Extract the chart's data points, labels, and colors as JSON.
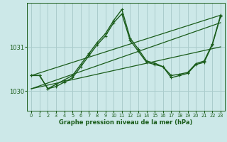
{
  "xlabel": "Graphe pression niveau de la mer (hPa)",
  "bg_color": "#cce8e8",
  "grid_color": "#aacccc",
  "line_color": "#1a5c1a",
  "xlim": [
    -0.5,
    23.5
  ],
  "ylim": [
    1029.55,
    1032.0
  ],
  "yticks": [
    1030,
    1031
  ],
  "xticks": [
    0,
    1,
    2,
    3,
    4,
    5,
    6,
    7,
    8,
    9,
    10,
    11,
    12,
    13,
    14,
    15,
    16,
    17,
    18,
    19,
    20,
    21,
    22,
    23
  ],
  "series": [
    {
      "x": [
        0,
        1,
        2,
        3,
        4,
        5,
        6,
        7,
        8,
        9,
        10,
        11,
        12,
        13,
        14,
        15,
        16,
        17,
        18,
        19,
        20,
        21,
        22,
        23
      ],
      "y": [
        1030.35,
        1030.35,
        1030.05,
        1030.1,
        1030.2,
        1030.3,
        1030.55,
        1030.8,
        1031.05,
        1031.25,
        1031.55,
        1031.75,
        1031.15,
        1030.9,
        1030.65,
        1030.6,
        1030.55,
        1030.3,
        1030.35,
        1030.4,
        1030.6,
        1030.65,
        1031.05,
        1031.7
      ],
      "marker": true,
      "linewidth": 1.0
    },
    {
      "x": [
        0,
        1,
        2,
        3,
        4,
        5,
        6,
        7,
        8,
        9,
        10,
        11,
        12,
        13,
        14,
        15,
        16,
        17,
        18,
        19,
        20,
        21,
        22,
        23
      ],
      "y": [
        1030.35,
        1030.35,
        1030.05,
        1030.15,
        1030.25,
        1030.35,
        1030.6,
        1030.85,
        1031.1,
        1031.3,
        1031.6,
        1031.85,
        1031.2,
        1030.95,
        1030.68,
        1030.63,
        1030.55,
        1030.35,
        1030.38,
        1030.42,
        1030.62,
        1030.68,
        1031.07,
        1031.72
      ],
      "marker": true,
      "linewidth": 1.0
    },
    {
      "x": [
        0,
        23
      ],
      "y": [
        1030.35,
        1031.72
      ],
      "marker": false,
      "linewidth": 0.9
    },
    {
      "x": [
        0,
        23
      ],
      "y": [
        1030.05,
        1031.55
      ],
      "marker": false,
      "linewidth": 0.9
    },
    {
      "x": [
        0,
        23
      ],
      "y": [
        1030.05,
        1031.0
      ],
      "marker": false,
      "linewidth": 0.9
    }
  ]
}
